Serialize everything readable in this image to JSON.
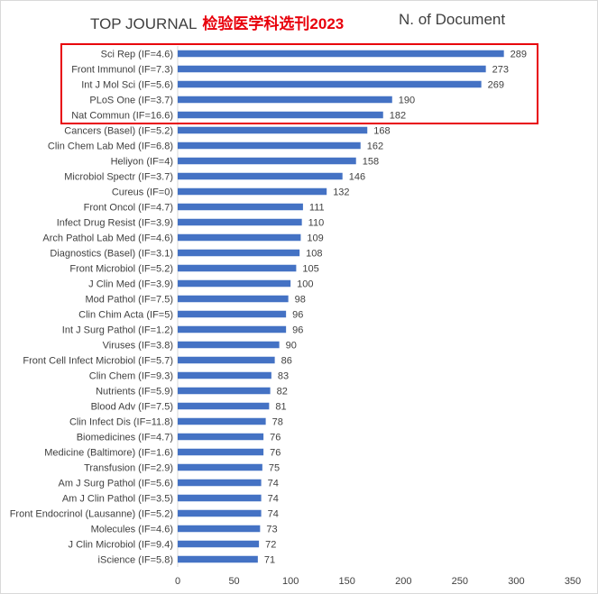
{
  "chart_data": {
    "type": "bar",
    "orientation": "horizontal",
    "title": "TOP JOURNAL",
    "title_highlight": "检验医学科选刊2023",
    "metric_label": "N. of Document",
    "categories": [
      "Sci Rep (IF=4.6)",
      "Front Immunol (IF=7.3)",
      "Int J Mol Sci (IF=5.6)",
      "PLoS One (IF=3.7)",
      "Nat Commun (IF=16.6)",
      "Cancers (Basel) (IF=5.2)",
      "Clin Chem Lab Med (IF=6.8)",
      "Heliyon (IF=4)",
      "Microbiol Spectr (IF=3.7)",
      "Cureus (IF=0)",
      "Front Oncol (IF=4.7)",
      "Infect Drug Resist (IF=3.9)",
      "Arch Pathol Lab Med (IF=4.6)",
      "Diagnostics (Basel) (IF=3.1)",
      "Front Microbiol (IF=5.2)",
      "J Clin Med (IF=3.9)",
      "Mod Pathol (IF=7.5)",
      "Clin Chim Acta (IF=5)",
      "Int J Surg Pathol (IF=1.2)",
      "Viruses (IF=3.8)",
      "Front Cell Infect Microbiol (IF=5.7)",
      "Clin Chem (IF=9.3)",
      "Nutrients (IF=5.9)",
      "Blood Adv (IF=7.5)",
      "Clin Infect Dis (IF=11.8)",
      "Biomedicines (IF=4.7)",
      "Medicine (Baltimore) (IF=1.6)",
      "Transfusion (IF=2.9)",
      "Am J Surg Pathol (IF=5.6)",
      "Am J Clin Pathol (IF=3.5)",
      "Front Endocrinol (Lausanne) (IF=5.2)",
      "Molecules (IF=4.6)",
      "J Clin Microbiol (IF=9.4)",
      "iScience (IF=5.8)"
    ],
    "values": [
      289,
      273,
      269,
      190,
      182,
      168,
      162,
      158,
      146,
      132,
      111,
      110,
      109,
      108,
      105,
      100,
      98,
      96,
      96,
      90,
      86,
      83,
      82,
      81,
      78,
      76,
      76,
      75,
      74,
      74,
      74,
      73,
      72,
      71
    ],
    "xlim": [
      0,
      350
    ],
    "xticks": [
      "0",
      "50",
      "100",
      "150",
      "200",
      "250",
      "300",
      "350"
    ],
    "grid": false,
    "highlight_top_n": 5,
    "colors": {
      "bar": "#4472c4",
      "highlight_box": "#e8000b",
      "text": "#404040"
    }
  }
}
